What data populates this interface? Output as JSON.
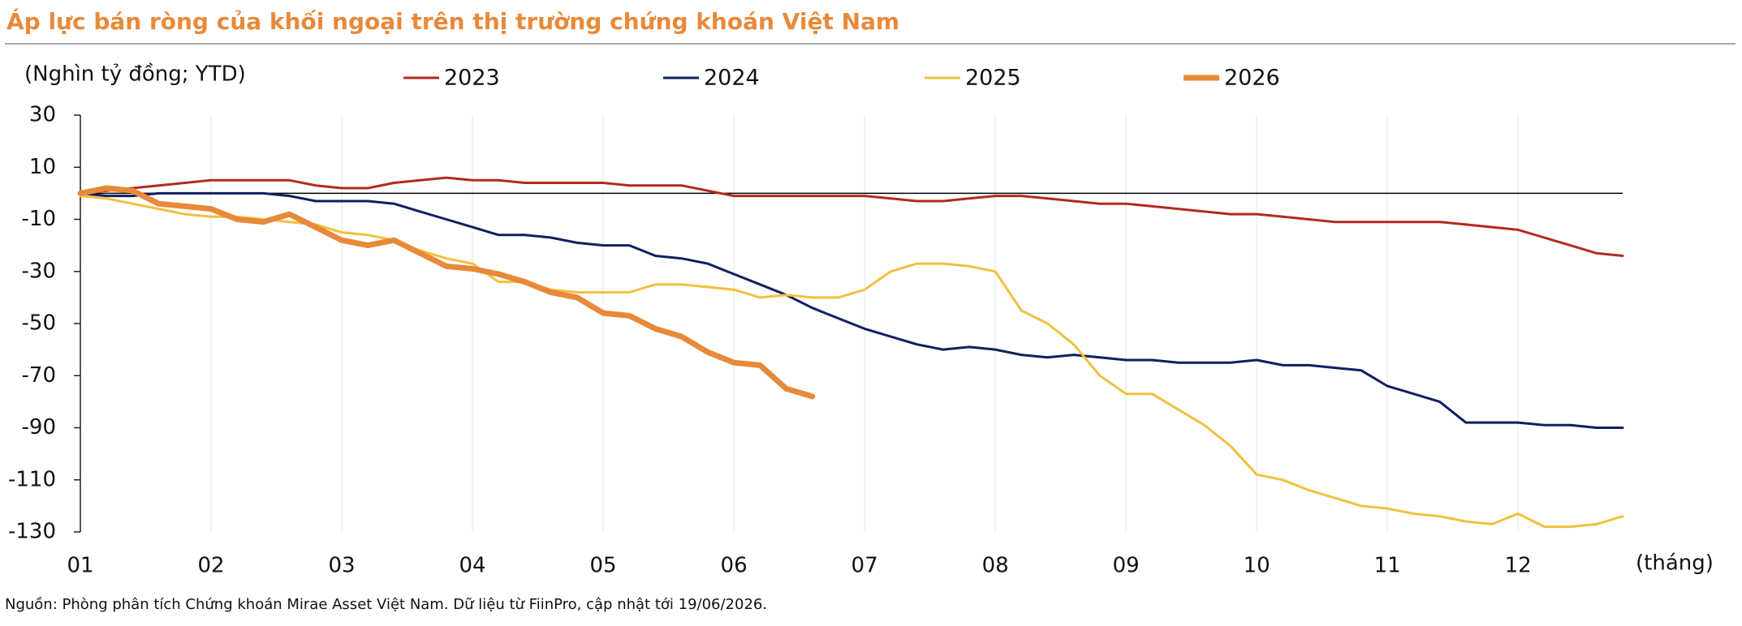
{
  "chart_data": {
    "type": "line",
    "title": "Áp lực bán ròng của khối ngoại trên thị trường chứng khoán Việt Nam",
    "y_label": "(Nghìn tỷ đồng; YTD)",
    "x_label": "(tháng)",
    "source": "Nguồn: Phòng phân tích Chứng khoán Mirae Asset Việt Nam. Dữ liệu từ FiinPro, cập nhật tới 19/06/2026.",
    "x": [
      1.0,
      1.2,
      1.4,
      1.6,
      1.8,
      2.0,
      2.2,
      2.4,
      2.6,
      2.8,
      3.0,
      3.2,
      3.4,
      3.6,
      3.8,
      4.0,
      4.2,
      4.4,
      4.6,
      4.8,
      5.0,
      5.2,
      5.4,
      5.6,
      5.8,
      6.0,
      6.2,
      6.4,
      6.6,
      6.8,
      7.0,
      7.2,
      7.4,
      7.6,
      7.8,
      8.0,
      8.2,
      8.4,
      8.6,
      8.8,
      9.0,
      9.2,
      9.4,
      9.6,
      9.8,
      10.0,
      10.2,
      10.4,
      10.6,
      10.8,
      11.0,
      11.2,
      11.4,
      11.6,
      11.8,
      12.0,
      12.2,
      12.4,
      12.6,
      12.8
    ],
    "xlim": [
      1,
      12.8
    ],
    "xticks": [
      {
        "value": 1,
        "label": "01"
      },
      {
        "value": 2,
        "label": "02"
      },
      {
        "value": 3,
        "label": "03"
      },
      {
        "value": 4,
        "label": "04"
      },
      {
        "value": 5,
        "label": "05"
      },
      {
        "value": 6,
        "label": "06"
      },
      {
        "value": 7,
        "label": "07"
      },
      {
        "value": 8,
        "label": "08"
      },
      {
        "value": 9,
        "label": "09"
      },
      {
        "value": 10,
        "label": "10"
      },
      {
        "value": 11,
        "label": "11"
      },
      {
        "value": 12,
        "label": "12"
      }
    ],
    "ylim": [
      -130,
      30
    ],
    "yticks": [
      30,
      10,
      -10,
      -30,
      -50,
      -70,
      -90,
      -110,
      -130
    ],
    "grid": true,
    "series": [
      {
        "name": "2023",
        "color": "#b5291f",
        "width": 3,
        "values": [
          0,
          1,
          2,
          3,
          4,
          5,
          5,
          5,
          5,
          3,
          2,
          2,
          4,
          5,
          6,
          5,
          5,
          4,
          4,
          4,
          4,
          3,
          3,
          3,
          1,
          -1,
          -1,
          -1,
          -1,
          -1,
          -1,
          -2,
          -3,
          -3,
          -2,
          -1,
          -1,
          -2,
          -3,
          -4,
          -4,
          -5,
          -6,
          -7,
          -8,
          -8,
          -9,
          -10,
          -11,
          -11,
          -11,
          -11,
          -11,
          -12,
          -13,
          -14,
          -17,
          -20,
          -23,
          -24
        ]
      },
      {
        "name": "2024",
        "color": "#0f2060",
        "width": 3,
        "values": [
          0,
          -1,
          -1,
          0,
          0,
          0,
          0,
          0,
          -1,
          -3,
          -3,
          -3,
          -4,
          -7,
          -10,
          -13,
          -16,
          -16,
          -17,
          -19,
          -20,
          -20,
          -24,
          -25,
          -27,
          -31,
          -35,
          -39,
          -44,
          -48,
          -52,
          -55,
          -58,
          -60,
          -59,
          -60,
          -62,
          -63,
          -62,
          -63,
          -64,
          -64,
          -65,
          -65,
          -65,
          -64,
          -66,
          -66,
          -67,
          -68,
          -74,
          -77,
          -80,
          -88,
          -88,
          -88,
          -89,
          -89,
          -90,
          -90
        ]
      },
      {
        "name": "2025",
        "color": "#f2c03c",
        "width": 3,
        "values": [
          -1,
          -2,
          -4,
          -6,
          -8,
          -9,
          -9,
          -10,
          -11,
          -12,
          -15,
          -16,
          -18,
          -22,
          -25,
          -27,
          -34,
          -34,
          -37,
          -38,
          -38,
          -38,
          -35,
          -35,
          -36,
          -37,
          -40,
          -39,
          -40,
          -40,
          -37,
          -30,
          -27,
          -27,
          -28,
          -30,
          -45,
          -50,
          -58,
          -70,
          -77,
          -77,
          -83,
          -89,
          -97,
          -108,
          -110,
          -114,
          -117,
          -120,
          -121,
          -123,
          -124,
          -126,
          -127,
          -123,
          -128,
          -128,
          -127,
          -124
        ]
      },
      {
        "name": "2026",
        "color": "#e8893a",
        "width": 7,
        "values": [
          0,
          2,
          1,
          -4,
          -5,
          -6,
          -10,
          -11,
          -8,
          -13,
          -18,
          -20,
          -18,
          -23,
          -28,
          -29,
          -31,
          -34,
          -38,
          -40,
          -46,
          -47,
          -52,
          -55,
          -61,
          -65,
          -66,
          -75,
          -78,
          null,
          null,
          null,
          null,
          null,
          null,
          null,
          null,
          null,
          null,
          null,
          null,
          null,
          null,
          null,
          null,
          null,
          null,
          null,
          null,
          null,
          null,
          null,
          null,
          null,
          null,
          null,
          null,
          null,
          null,
          null
        ]
      }
    ]
  }
}
